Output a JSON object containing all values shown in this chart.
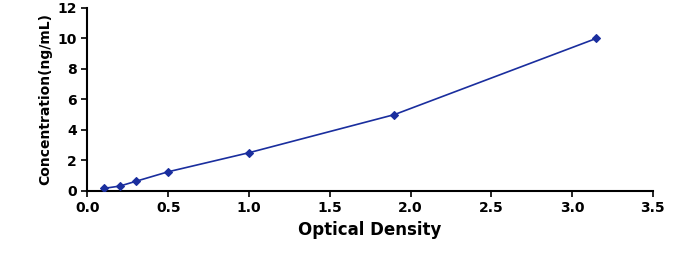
{
  "x": [
    0.1,
    0.2,
    0.3,
    0.5,
    1.0,
    1.9,
    3.15
  ],
  "y": [
    0.156,
    0.31,
    0.625,
    1.25,
    2.5,
    5.0,
    10.0
  ],
  "line_color": "#1a2e9e",
  "marker_color": "#1a2e9e",
  "marker": "D",
  "marker_size": 4,
  "linewidth": 1.2,
  "xlabel": "Optical Density",
  "ylabel": "Concentration(ng/mL)",
  "xlim": [
    0,
    3.5
  ],
  "ylim": [
    0,
    12
  ],
  "xticks": [
    0.0,
    0.5,
    1.0,
    1.5,
    2.0,
    2.5,
    3.0,
    3.5
  ],
  "yticks": [
    0,
    2,
    4,
    6,
    8,
    10,
    12
  ],
  "xlabel_fontsize": 12,
  "ylabel_fontsize": 10,
  "tick_fontsize": 10,
  "background_color": "#ffffff",
  "xlabel_fontweight": "bold",
  "ylabel_fontweight": "bold",
  "tick_fontweight": "bold",
  "spine_linewidth": 1.5
}
